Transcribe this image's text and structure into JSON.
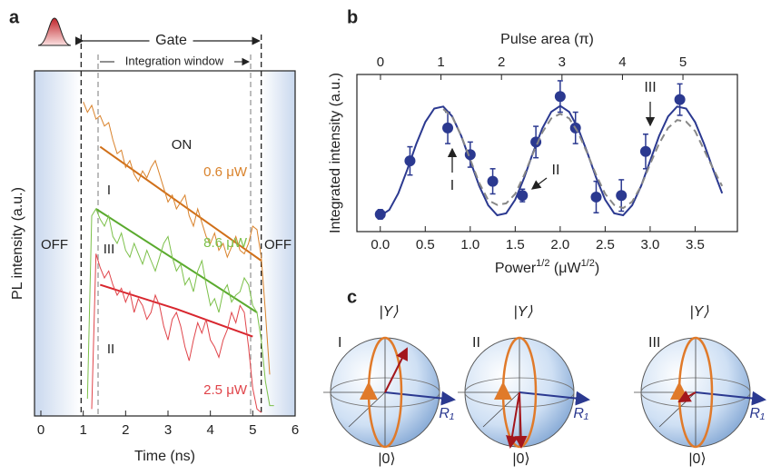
{
  "panel_labels": [
    "a",
    "b",
    "c"
  ],
  "chart_data": [
    {
      "type": "line",
      "xlabel": "Time (ns)",
      "ylabel": "PL intensity (a.u.)",
      "xlim": [
        -0.15,
        6
      ],
      "xticks": [
        0,
        1,
        2,
        3,
        4,
        5,
        6
      ],
      "ylim": [
        0,
        1
      ],
      "gate_label": "Gate",
      "window_label": "Integration window",
      "gate": [
        0.95,
        5.2
      ],
      "window": [
        1.35,
        4.95
      ],
      "annotations": [
        "ON",
        "I",
        "III",
        "II",
        "OFF",
        "OFF"
      ],
      "series": [
        {
          "name": "0.6 μW",
          "color": "#d9822b",
          "x": [
            1.0,
            1.1,
            1.2,
            1.3,
            1.4,
            1.5,
            1.6,
            1.7,
            1.8,
            1.9,
            2.0,
            2.1,
            2.2,
            2.3,
            2.4,
            2.5,
            2.6,
            2.7,
            2.8,
            2.9,
            3.0,
            3.1,
            3.2,
            3.3,
            3.4,
            3.5,
            3.6,
            3.7,
            3.8,
            3.9,
            4.0,
            4.1,
            4.2,
            4.3,
            4.4,
            4.5,
            4.6,
            4.7,
            4.8,
            4.9,
            5.0,
            5.1,
            5.2,
            5.3,
            5.4
          ],
          "values": [
            0.91,
            0.88,
            0.9,
            0.86,
            0.87,
            0.84,
            0.85,
            0.8,
            0.76,
            0.77,
            0.72,
            0.74,
            0.7,
            0.68,
            0.71,
            0.69,
            0.72,
            0.74,
            0.7,
            0.66,
            0.62,
            0.64,
            0.6,
            0.62,
            0.64,
            0.58,
            0.55,
            0.6,
            0.56,
            0.52,
            0.5,
            0.53,
            0.48,
            0.5,
            0.46,
            0.49,
            0.52,
            0.48,
            0.47,
            0.5,
            0.55,
            0.54,
            0.46,
            0.3,
            0.12
          ]
        },
        {
          "name": "8.6 μW",
          "color": "#7cc04a",
          "x": [
            1.1,
            1.2,
            1.3,
            1.4,
            1.5,
            1.6,
            1.7,
            1.8,
            1.9,
            2.0,
            2.1,
            2.2,
            2.3,
            2.4,
            2.5,
            2.6,
            2.7,
            2.8,
            2.9,
            3.0,
            3.1,
            3.2,
            3.3,
            3.4,
            3.5,
            3.6,
            3.7,
            3.8,
            3.9,
            4.0,
            4.1,
            4.2,
            4.3,
            4.4,
            4.5,
            4.6,
            4.7,
            4.8,
            4.9,
            5.0,
            5.1,
            5.2,
            5.3,
            5.4,
            5.5
          ],
          "values": [
            0.05,
            0.58,
            0.6,
            0.57,
            0.55,
            0.58,
            0.52,
            0.5,
            0.53,
            0.48,
            0.46,
            0.5,
            0.47,
            0.44,
            0.48,
            0.45,
            0.42,
            0.46,
            0.5,
            0.52,
            0.46,
            0.42,
            0.44,
            0.38,
            0.4,
            0.36,
            0.42,
            0.45,
            0.38,
            0.32,
            0.34,
            0.3,
            0.36,
            0.38,
            0.33,
            0.35,
            0.36,
            0.4,
            0.38,
            0.32,
            0.3,
            0.22,
            0.1,
            0.03,
            0.03
          ]
        },
        {
          "name": "2.5 μW",
          "color": "#e0444a",
          "x": [
            1.2,
            1.3,
            1.4,
            1.5,
            1.6,
            1.7,
            1.8,
            1.9,
            2.0,
            2.1,
            2.2,
            2.3,
            2.4,
            2.5,
            2.6,
            2.7,
            2.8,
            2.9,
            3.0,
            3.1,
            3.2,
            3.3,
            3.4,
            3.5,
            3.6,
            3.7,
            3.8,
            3.9,
            4.0,
            4.1,
            4.2,
            4.3,
            4.4,
            4.5,
            4.6,
            4.7,
            4.8,
            4.9,
            5.0,
            5.1,
            5.2
          ],
          "values": [
            0.02,
            0.47,
            0.43,
            0.4,
            0.42,
            0.38,
            0.35,
            0.37,
            0.33,
            0.36,
            0.3,
            0.34,
            0.32,
            0.28,
            0.3,
            0.35,
            0.32,
            0.26,
            0.22,
            0.28,
            0.3,
            0.26,
            0.2,
            0.16,
            0.22,
            0.27,
            0.24,
            0.28,
            0.22,
            0.2,
            0.17,
            0.22,
            0.25,
            0.3,
            0.27,
            0.32,
            0.3,
            0.2,
            0.08,
            0.02,
            0.01
          ]
        }
      ],
      "fits": [
        {
          "color": "#d0701a",
          "x": [
            1.4,
            5.2
          ],
          "values": [
            0.78,
            0.45
          ]
        },
        {
          "color": "#5aaa2e",
          "x": [
            1.3,
            5.1
          ],
          "values": [
            0.6,
            0.3
          ]
        },
        {
          "color": "#d8262e",
          "x": [
            1.4,
            3.2,
            5.0
          ],
          "values": [
            0.38,
            0.31,
            0.23
          ]
        }
      ]
    },
    {
      "type": "scatter",
      "ylabel": "Integrated intensity (a.u.)",
      "xlabel_parts": [
        "Power",
        "1/2",
        " (μW",
        "1/2",
        ")"
      ],
      "x2label": "Pulse area (π)",
      "xlim": [
        -0.26,
        3.97
      ],
      "ylim": [
        0,
        1
      ],
      "x2lim": [
        -0.39,
        5.9
      ],
      "xticks": [
        {
          "value": 0,
          "label": "0.0"
        },
        {
          "value": 0.5,
          "label": "0.5"
        },
        {
          "value": 1,
          "label": "1.0"
        },
        {
          "value": 1.5,
          "label": "1.5"
        },
        {
          "value": 2,
          "label": "2.0"
        },
        {
          "value": 2.5,
          "label": "2.5"
        },
        {
          "value": 3,
          "label": "3.0"
        },
        {
          "value": 3.5,
          "label": "3.5"
        }
      ],
      "x2ticks": [
        0,
        1,
        2,
        3,
        4,
        5
      ],
      "annotations": [
        "I",
        "II",
        "III"
      ],
      "series": [
        {
          "style": "markers",
          "color": "#2b3990",
          "x": [
            0.0,
            0.33,
            0.75,
            1.0,
            1.25,
            1.58,
            1.73,
            2.0,
            2.17,
            2.4,
            2.68,
            2.95,
            3.33
          ],
          "values": [
            0.11,
            0.45,
            0.66,
            0.49,
            0.32,
            0.23,
            0.57,
            0.86,
            0.66,
            0.22,
            0.23,
            0.51,
            0.84
          ],
          "errors": [
            0.03,
            0.09,
            0.1,
            0.08,
            0.08,
            0.04,
            0.1,
            0.1,
            0.1,
            0.1,
            0.1,
            0.11,
            0.1
          ]
        },
        {
          "style": "line",
          "color": "#2b3990",
          "x": [
            0,
            0.1,
            0.2,
            0.3,
            0.4,
            0.5,
            0.6,
            0.7,
            0.8,
            0.9,
            1.0,
            1.1,
            1.2,
            1.3,
            1.4,
            1.5,
            1.6,
            1.7,
            1.8,
            1.9,
            2.0,
            2.1,
            2.2,
            2.3,
            2.4,
            2.5,
            2.6,
            2.7,
            2.8,
            2.9,
            3.0,
            3.1,
            3.2,
            3.3,
            3.4,
            3.5,
            3.6,
            3.7,
            3.8
          ],
          "values": [
            0.1,
            0.138,
            0.244,
            0.395,
            0.558,
            0.697,
            0.783,
            0.796,
            0.733,
            0.609,
            0.45,
            0.291,
            0.167,
            0.104,
            0.117,
            0.203,
            0.342,
            0.505,
            0.656,
            0.762,
            0.8,
            0.762,
            0.656,
            0.505,
            0.342,
            0.203,
            0.117,
            0.104,
            0.167,
            0.291,
            0.45,
            0.609,
            0.733,
            0.796,
            0.783,
            0.697,
            0.558,
            0.395,
            0.244
          ]
        },
        {
          "style": "dashed",
          "color": "#888888",
          "x": [
            0.7,
            0.8,
            0.9,
            1.0,
            1.1,
            1.2,
            1.3,
            1.4,
            1.5,
            1.6,
            1.7,
            1.8,
            1.9,
            2.0,
            2.1,
            2.2,
            2.3,
            2.4,
            2.5,
            2.6,
            2.7,
            2.8,
            2.9,
            3.0,
            3.1,
            3.2,
            3.3,
            3.4,
            3.5,
            3.6,
            3.7,
            3.8
          ],
          "values": [
            0.78,
            0.73,
            0.61,
            0.46,
            0.31,
            0.2,
            0.17,
            0.18,
            0.24,
            0.36,
            0.5,
            0.63,
            0.72,
            0.75,
            0.72,
            0.63,
            0.5,
            0.36,
            0.24,
            0.17,
            0.15,
            0.19,
            0.29,
            0.43,
            0.56,
            0.66,
            0.71,
            0.7,
            0.64,
            0.52,
            0.4,
            0.29
          ]
        }
      ]
    }
  ],
  "bloch_spheres": [
    {
      "label": "I",
      "top": "|Y⟩",
      "bottom": "|0⟩",
      "axis": "R₁"
    },
    {
      "label": "II",
      "top": "|Y⟩",
      "bottom": "|0⟩",
      "axis": "R₁"
    },
    {
      "label": "III",
      "top": "|Y⟩",
      "bottom": "|0⟩",
      "axis": "R₁"
    }
  ]
}
